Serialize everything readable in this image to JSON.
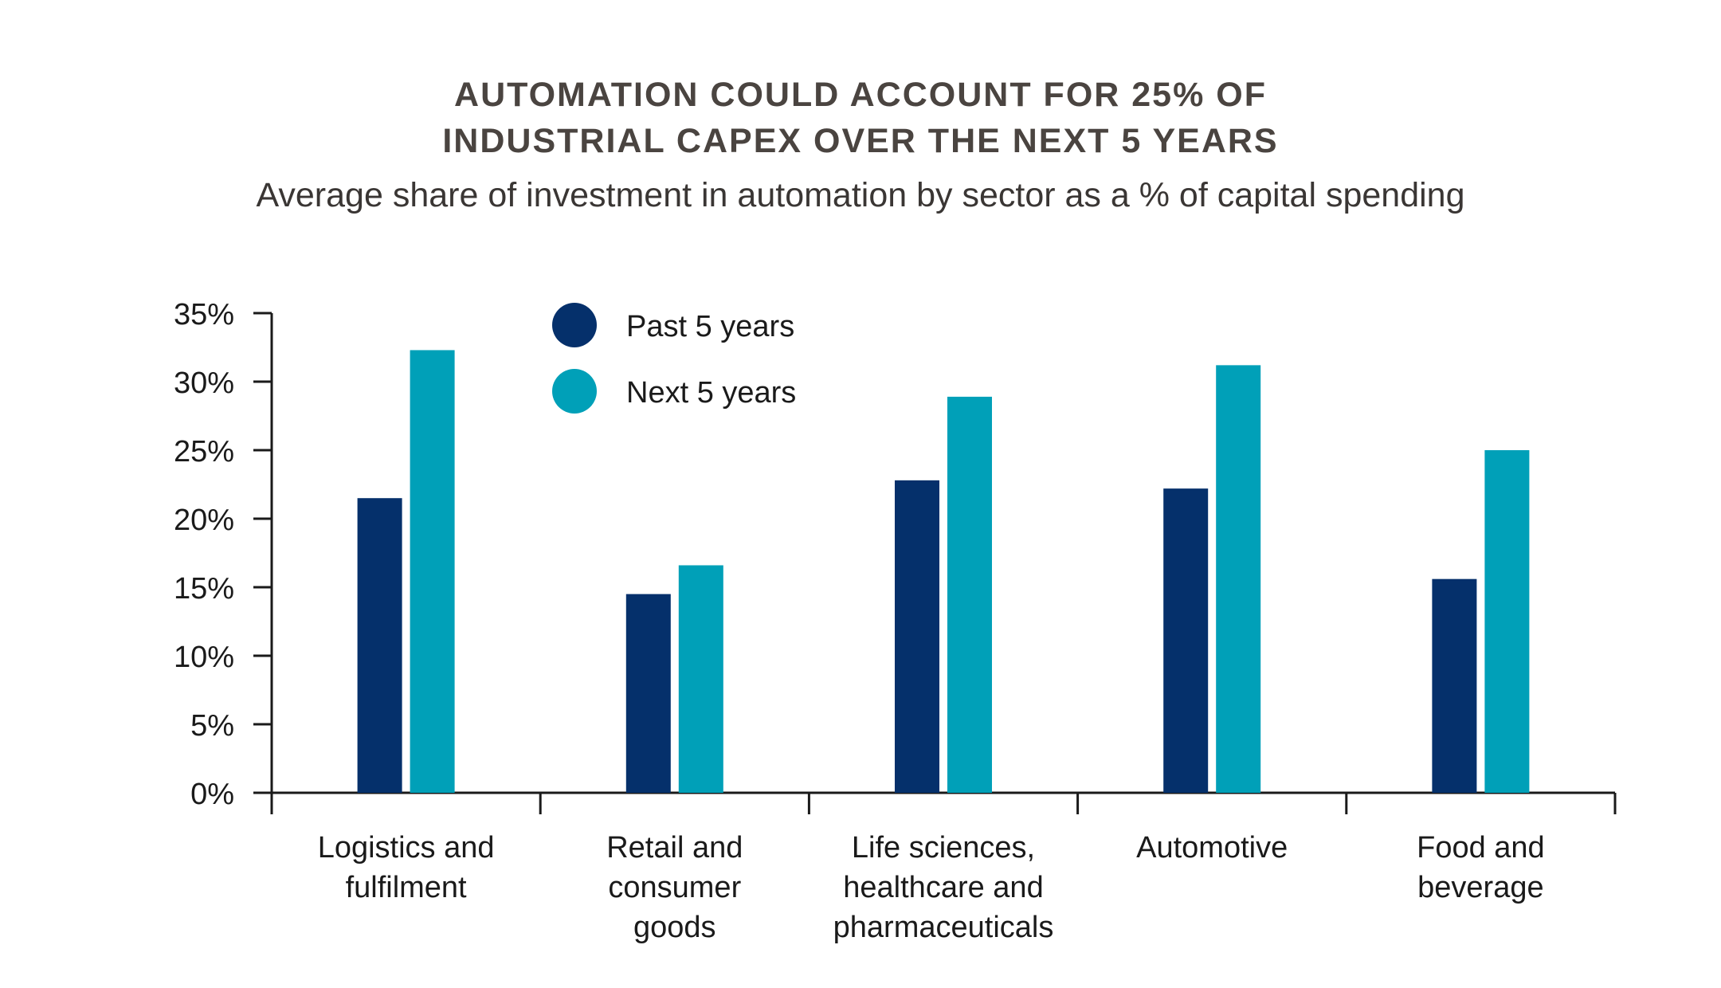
{
  "title_lines": [
    "AUTOMATION COULD ACCOUNT FOR 25% OF",
    "INDUSTRIAL CAPEX OVER THE NEXT 5 YEARS"
  ],
  "subtitle": "Average share of investment in automation by sector as a % of capital spending",
  "colors": {
    "past": "#05306b",
    "next": "#00a0b8"
  },
  "chart_data": {
    "type": "bar",
    "title": "AUTOMATION COULD ACCOUNT FOR 25% OF INDUSTRIAL CAPEX OVER THE NEXT 5 YEARS",
    "subtitle": "Average share of investment in automation by sector as a % of capital spending",
    "categories": [
      [
        "Logistics and",
        "fulfilment"
      ],
      [
        "Retail and",
        "consumer",
        "goods"
      ],
      [
        "Life sciences,",
        "healthcare and",
        "pharmaceuticals"
      ],
      [
        "Automotive"
      ],
      [
        "Food and",
        "beverage"
      ]
    ],
    "series": [
      {
        "name": "Past 5 years",
        "color": "#05306b",
        "values": [
          21.5,
          14.5,
          22.8,
          22.2,
          15.6
        ]
      },
      {
        "name": "Next 5 years",
        "color": "#00a0b8",
        "values": [
          32.3,
          16.6,
          28.9,
          31.2,
          25.0
        ]
      }
    ],
    "ylim": [
      0,
      35
    ],
    "yticks": [
      0,
      5,
      10,
      15,
      20,
      25,
      30,
      35
    ],
    "ytick_labels": [
      "0%",
      "5%",
      "10%",
      "15%",
      "20%",
      "25%",
      "30%",
      "35%"
    ],
    "xlabel": "",
    "ylabel": "",
    "grid": false,
    "legend_position": "top-left"
  }
}
